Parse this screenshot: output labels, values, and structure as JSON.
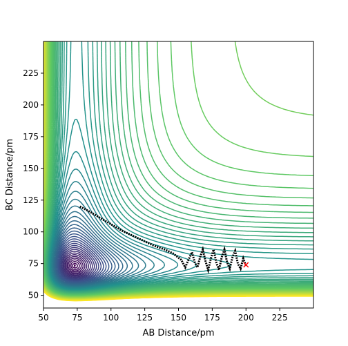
{
  "chart_data": {
    "type": "contour",
    "title": "",
    "xlabel": "AB Distance/pm",
    "ylabel": "BC Distance/pm",
    "xlim": [
      50,
      250
    ],
    "ylim": [
      40,
      250
    ],
    "xticks": [
      "50",
      "75",
      "100",
      "125",
      "150",
      "175",
      "200",
      "225"
    ],
    "yticks": [
      "50",
      "75",
      "100",
      "125",
      "150",
      "175",
      "200",
      "225"
    ],
    "xtick_values": [
      50,
      75,
      100,
      125,
      150,
      175,
      200,
      225
    ],
    "ytick_values": [
      50,
      75,
      100,
      125,
      150,
      175,
      200,
      225
    ],
    "colormap": [
      "#440154",
      "#3b528b",
      "#21918c",
      "#5ec962",
      "#fde725"
    ],
    "contour_levels": 60,
    "grid": false,
    "trajectory": {
      "color": "#000000",
      "start": [
        77,
        120
      ],
      "end": [
        200,
        73
      ],
      "points": [
        [
          77,
          120
        ],
        [
          84,
          116
        ],
        [
          92,
          111
        ],
        [
          100,
          106
        ],
        [
          108,
          101
        ],
        [
          116,
          97
        ],
        [
          124,
          93
        ],
        [
          132,
          89
        ],
        [
          140,
          86
        ],
        [
          146,
          83
        ],
        [
          152,
          78
        ],
        [
          155,
          72
        ],
        [
          157,
          77
        ],
        [
          160,
          84
        ],
        [
          162,
          76
        ],
        [
          164,
          72
        ],
        [
          166,
          80
        ],
        [
          168,
          86
        ],
        [
          170,
          77
        ],
        [
          172,
          70
        ],
        [
          174,
          79
        ],
        [
          176,
          86
        ],
        [
          178,
          76
        ],
        [
          180,
          70
        ],
        [
          182,
          80
        ],
        [
          184,
          86
        ],
        [
          186,
          76
        ],
        [
          188,
          71
        ],
        [
          190,
          80
        ],
        [
          192,
          85
        ],
        [
          194,
          75
        ],
        [
          196,
          71
        ],
        [
          198,
          79
        ],
        [
          200,
          73
        ]
      ]
    },
    "marker": {
      "color": "#ff0000",
      "x": 200,
      "y": 74,
      "symbol": "x"
    }
  }
}
